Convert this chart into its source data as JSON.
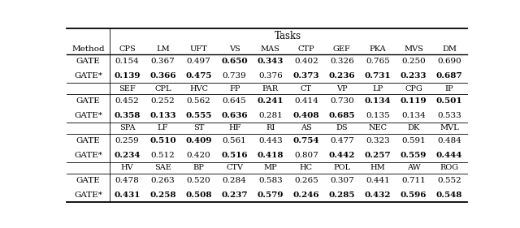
{
  "title": "Tasks",
  "headers": [
    [
      "CPS",
      "LM",
      "UFT",
      "VS",
      "MAS",
      "CTP",
      "GEF",
      "PKA",
      "MVS",
      "DM"
    ],
    [
      "SEF",
      "CPL",
      "HVC",
      "FP",
      "PAR",
      "CT",
      "VP",
      "LP",
      "CPG",
      "IP"
    ],
    [
      "SPA",
      "LF",
      "ST",
      "HF",
      "RI",
      "AS",
      "DS",
      "NEC",
      "DK",
      "MVL"
    ],
    [
      "HV",
      "SAE",
      "BP",
      "CTV",
      "MP",
      "HC",
      "POL",
      "HM",
      "AW",
      "ROG"
    ]
  ],
  "blocks": [
    {
      "rows": [
        [
          "GATE",
          "0.154",
          "0.367",
          "0.497",
          "0.650",
          "0.343",
          "0.402",
          "0.326",
          "0.765",
          "0.250",
          "0.690"
        ],
        [
          "GATE*",
          "0.139",
          "0.366",
          "0.475",
          "0.739",
          "0.376",
          "0.373",
          "0.236",
          "0.731",
          "0.233",
          "0.687"
        ]
      ],
      "bold": [
        [
          false,
          false,
          false,
          false,
          true,
          true,
          false,
          false,
          false,
          false,
          false
        ],
        [
          false,
          true,
          true,
          true,
          false,
          false,
          true,
          true,
          true,
          true,
          true
        ]
      ]
    },
    {
      "rows": [
        [
          "GATE",
          "0.452",
          "0.252",
          "0.562",
          "0.645",
          "0.241",
          "0.414",
          "0.730",
          "0.134",
          "0.119",
          "0.501"
        ],
        [
          "GATE*",
          "0.358",
          "0.133",
          "0.555",
          "0.636",
          "0.281",
          "0.408",
          "0.685",
          "0.135",
          "0.134",
          "0.533"
        ]
      ],
      "bold": [
        [
          false,
          false,
          false,
          false,
          false,
          true,
          false,
          false,
          true,
          true,
          true
        ],
        [
          false,
          true,
          true,
          true,
          true,
          false,
          true,
          true,
          false,
          false,
          false
        ]
      ]
    },
    {
      "rows": [
        [
          "GATE",
          "0.259",
          "0.510",
          "0.409",
          "0.561",
          "0.443",
          "0.754",
          "0.477",
          "0.323",
          "0.591",
          "0.484"
        ],
        [
          "GATE*",
          "0.234",
          "0.512",
          "0.420",
          "0.516",
          "0.418",
          "0.807",
          "0.442",
          "0.257",
          "0.559",
          "0.444"
        ]
      ],
      "bold": [
        [
          false,
          false,
          true,
          true,
          false,
          false,
          true,
          false,
          false,
          false,
          false
        ],
        [
          false,
          true,
          false,
          false,
          true,
          true,
          false,
          true,
          true,
          true,
          true
        ]
      ]
    },
    {
      "rows": [
        [
          "GATE",
          "0.478",
          "0.263",
          "0.520",
          "0.284",
          "0.583",
          "0.265",
          "0.307",
          "0.441",
          "0.711",
          "0.552"
        ],
        [
          "GATE*",
          "0.431",
          "0.258",
          "0.508",
          "0.237",
          "0.579",
          "0.246",
          "0.285",
          "0.432",
          "0.596",
          "0.548"
        ]
      ],
      "bold": [
        [
          false,
          false,
          false,
          false,
          false,
          false,
          false,
          false,
          false,
          false,
          false
        ],
        [
          false,
          true,
          true,
          true,
          true,
          true,
          true,
          true,
          true,
          true,
          true
        ]
      ]
    }
  ],
  "bg_color": "#ffffff",
  "line_color": "#000000",
  "data_fontsize": 7.5,
  "header_fontsize": 7.0,
  "title_fontsize": 8.5,
  "method_fontsize": 7.5
}
